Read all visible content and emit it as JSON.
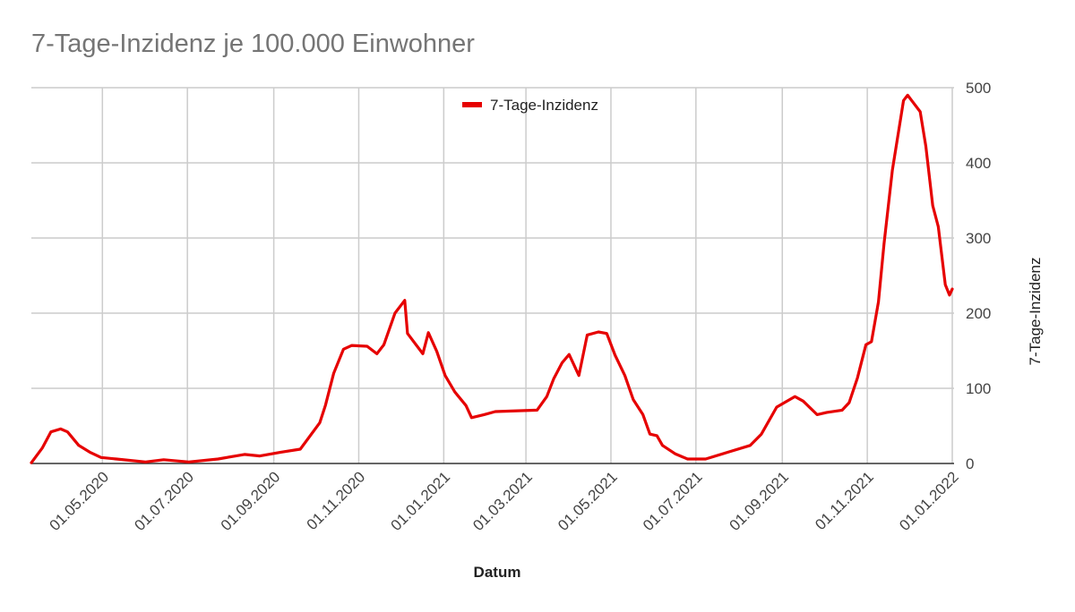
{
  "chart_data": {
    "type": "line",
    "title": "7-Tage-Inzidenz je 100.000 Einwohner",
    "xlabel": "Datum",
    "ylabel": "7-Tage-Inzidenz",
    "ylim": [
      0,
      500
    ],
    "xlim": [
      "2020-03-11",
      "2022-01-01"
    ],
    "y_ticks": [
      "0",
      "100",
      "200",
      "300",
      "400",
      "500"
    ],
    "x_ticks": [
      {
        "date": "2020-05-01",
        "label": "01.05.2020"
      },
      {
        "date": "2020-07-01",
        "label": "01.07.2020"
      },
      {
        "date": "2020-09-01",
        "label": "01.09.2020"
      },
      {
        "date": "2020-11-01",
        "label": "01.11.2020"
      },
      {
        "date": "2021-01-01",
        "label": "01.01.2021"
      },
      {
        "date": "2021-03-01",
        "label": "01.03.2021"
      },
      {
        "date": "2021-05-01",
        "label": "01.05.2021"
      },
      {
        "date": "2021-07-01",
        "label": "01.07.2021"
      },
      {
        "date": "2021-09-01",
        "label": "01.09.2021"
      },
      {
        "date": "2021-11-01",
        "label": "01.11.2021"
      },
      {
        "date": "2022-01-01",
        "label": "01.01.2022"
      }
    ],
    "grid": true,
    "legend": {
      "position": "top",
      "entries": [
        "7-Tage-Inzidenz"
      ]
    },
    "series": [
      {
        "name": "7-Tage-Inzidenz",
        "color": "#e60000",
        "points": [
          [
            "2020-03-11",
            1
          ],
          [
            "2020-03-19",
            21
          ],
          [
            "2020-03-25",
            42
          ],
          [
            "2020-04-01",
            46
          ],
          [
            "2020-04-06",
            42
          ],
          [
            "2020-04-14",
            24
          ],
          [
            "2020-04-22",
            15
          ],
          [
            "2020-04-30",
            8
          ],
          [
            "2020-05-11",
            6
          ],
          [
            "2020-06-01",
            2
          ],
          [
            "2020-06-14",
            5
          ],
          [
            "2020-07-02",
            2
          ],
          [
            "2020-07-23",
            6
          ],
          [
            "2020-08-11",
            12
          ],
          [
            "2020-08-22",
            10
          ],
          [
            "2020-09-06",
            15
          ],
          [
            "2020-09-20",
            19
          ],
          [
            "2020-10-04",
            54
          ],
          [
            "2020-10-08",
            77
          ],
          [
            "2020-10-14",
            120
          ],
          [
            "2020-10-21",
            152
          ],
          [
            "2020-10-27",
            157
          ],
          [
            "2020-11-07",
            156
          ],
          [
            "2020-11-14",
            146
          ],
          [
            "2020-11-19",
            158
          ],
          [
            "2020-11-27",
            200
          ],
          [
            "2020-12-04",
            217
          ],
          [
            "2020-12-06",
            173
          ],
          [
            "2020-12-17",
            146
          ],
          [
            "2020-12-21",
            174
          ],
          [
            "2020-12-27",
            149
          ],
          [
            "2021-01-02",
            117
          ],
          [
            "2021-01-09",
            95
          ],
          [
            "2021-01-17",
            77
          ],
          [
            "2021-01-21",
            61
          ],
          [
            "2021-01-30",
            65
          ],
          [
            "2021-02-07",
            69
          ],
          [
            "2021-03-09",
            71
          ],
          [
            "2021-03-16",
            89
          ],
          [
            "2021-03-21",
            113
          ],
          [
            "2021-03-27",
            134
          ],
          [
            "2021-04-01",
            145
          ],
          [
            "2021-04-08",
            117
          ],
          [
            "2021-04-14",
            171
          ],
          [
            "2021-04-22",
            175
          ],
          [
            "2021-04-28",
            173
          ],
          [
            "2021-05-04",
            144
          ],
          [
            "2021-05-11",
            117
          ],
          [
            "2021-05-17",
            85
          ],
          [
            "2021-05-24",
            65
          ],
          [
            "2021-05-29",
            39
          ],
          [
            "2021-06-03",
            37
          ],
          [
            "2021-06-07",
            24
          ],
          [
            "2021-06-16",
            13
          ],
          [
            "2021-06-25",
            6
          ],
          [
            "2021-07-08",
            6
          ],
          [
            "2021-07-24",
            15
          ],
          [
            "2021-08-09",
            24
          ],
          [
            "2021-08-17",
            39
          ],
          [
            "2021-08-28",
            75
          ],
          [
            "2021-09-10",
            89
          ],
          [
            "2021-09-16",
            83
          ],
          [
            "2021-09-26",
            65
          ],
          [
            "2021-10-03",
            68
          ],
          [
            "2021-10-14",
            71
          ],
          [
            "2021-10-19",
            81
          ],
          [
            "2021-10-25",
            114
          ],
          [
            "2021-10-31",
            158
          ],
          [
            "2021-11-04",
            162
          ],
          [
            "2021-11-09",
            215
          ],
          [
            "2021-11-13",
            292
          ],
          [
            "2021-11-19",
            390
          ],
          [
            "2021-11-27",
            483
          ],
          [
            "2021-11-30",
            490
          ],
          [
            "2021-12-09",
            468
          ],
          [
            "2021-12-13",
            422
          ],
          [
            "2021-12-18",
            343
          ],
          [
            "2021-12-22",
            315
          ],
          [
            "2021-12-27",
            238
          ],
          [
            "2021-12-30",
            224
          ],
          [
            "2022-01-01",
            232
          ]
        ]
      }
    ]
  }
}
